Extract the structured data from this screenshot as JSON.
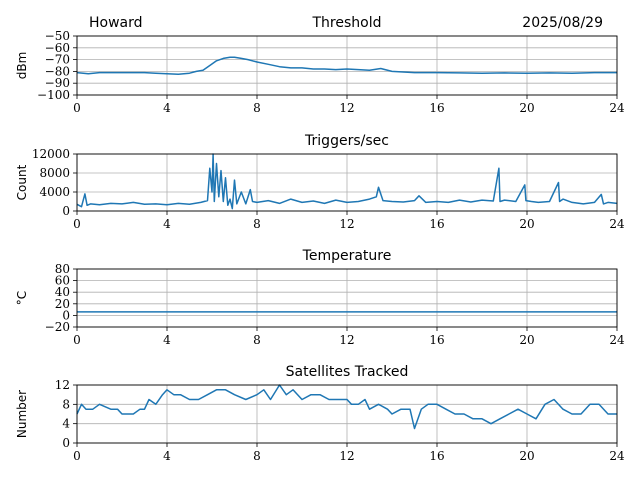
{
  "header": {
    "station": "Howard",
    "date": "2025/08/29"
  },
  "colors": {
    "series": "#1f77b4",
    "grid": "#b0b0b0"
  },
  "chart_data": [
    {
      "type": "line",
      "title": "Threshold",
      "ylabel": "dBm",
      "xlim": [
        0,
        24
      ],
      "ylim": [
        -100,
        -50
      ],
      "xticks": [
        0,
        4,
        8,
        12,
        16,
        20,
        24
      ],
      "xtick_labels": [
        "0",
        "4",
        "8",
        "12",
        "16",
        "20",
        "24"
      ],
      "yticks": [
        -100,
        -90,
        -80,
        -70,
        -60,
        -50
      ],
      "ytick_labels": [
        "−100",
        "−90",
        "−80",
        "−70",
        "−60",
        "−50"
      ],
      "grid": true,
      "series": [
        {
          "x": [
            0,
            0.5,
            1,
            2,
            3,
            3.5,
            4,
            4.5,
            5,
            5.3,
            5.6,
            5.9,
            6.2,
            6.5,
            6.8,
            7,
            7.3,
            7.6,
            8,
            8.5,
            9,
            9.5,
            10,
            10.5,
            11,
            11.5,
            12,
            12.5,
            13,
            13.5,
            14,
            15,
            16,
            17,
            18,
            19,
            20,
            21,
            22,
            23,
            24
          ],
          "y": [
            -81,
            -82,
            -81,
            -81,
            -81,
            -81.5,
            -82,
            -82.5,
            -81.5,
            -80,
            -79,
            -75,
            -71,
            -69,
            -68,
            -68,
            -69,
            -70,
            -72,
            -74,
            -76,
            -77,
            -77,
            -78,
            -78,
            -78.5,
            -78,
            -78.5,
            -79,
            -77.5,
            -80,
            -81,
            -81,
            -81.3,
            -81.5,
            -81.3,
            -81.5,
            -81.3,
            -81.5,
            -81,
            -81
          ]
        }
      ]
    },
    {
      "type": "line",
      "title": "Triggers/sec",
      "ylabel": "Count",
      "xlim": [
        0,
        24
      ],
      "ylim": [
        0,
        12000
      ],
      "xticks": [
        0,
        4,
        8,
        12,
        16,
        20,
        24
      ],
      "xtick_labels": [
        "0",
        "4",
        "8",
        "12",
        "16",
        "20",
        "24"
      ],
      "yticks": [
        0,
        4000,
        8000,
        12000
      ],
      "ytick_labels": [
        "0",
        "4000",
        "8000",
        "12000"
      ],
      "grid": true,
      "series": [
        {
          "x": [
            0,
            0.2,
            0.35,
            0.45,
            0.6,
            1,
            1.5,
            2,
            2.5,
            3,
            3.5,
            4,
            4.5,
            5,
            5.5,
            5.8,
            5.9,
            6.0,
            6.05,
            6.1,
            6.2,
            6.3,
            6.4,
            6.5,
            6.6,
            6.7,
            6.8,
            6.9,
            7.0,
            7.1,
            7.3,
            7.5,
            7.7,
            7.8,
            8,
            8.5,
            9,
            9.5,
            10,
            10.5,
            11,
            11.5,
            12,
            12.5,
            13,
            13.3,
            13.4,
            13.6,
            14,
            14.5,
            15,
            15.2,
            15.5,
            16,
            16.5,
            17,
            17.5,
            18,
            18.5,
            18.75,
            18.8,
            19,
            19.5,
            19.9,
            19.95,
            20.2,
            20.5,
            21,
            21.4,
            21.45,
            21.6,
            22,
            22.5,
            23,
            23.3,
            23.4,
            23.6,
            24
          ],
          "y": [
            1400,
            900,
            3600,
            1200,
            1500,
            1300,
            1600,
            1500,
            1800,
            1400,
            1500,
            1300,
            1600,
            1400,
            1800,
            2200,
            9000,
            4000,
            12000,
            2000,
            10000,
            3000,
            8500,
            2000,
            7000,
            1200,
            2500,
            500,
            6500,
            1500,
            4000,
            1500,
            4500,
            2000,
            1800,
            2200,
            1600,
            2500,
            1800,
            2100,
            1600,
            2300,
            1800,
            2000,
            2500,
            3000,
            5000,
            2200,
            2000,
            1900,
            2200,
            3200,
            1800,
            2000,
            1800,
            2300,
            1900,
            2300,
            2100,
            9000,
            2000,
            2300,
            2000,
            5500,
            2200,
            2000,
            1800,
            2000,
            6000,
            2000,
            2500,
            1800,
            1500,
            1800,
            3500,
            1500,
            1800,
            1600
          ]
        }
      ]
    },
    {
      "type": "line",
      "title": "Temperature",
      "ylabel": "°C",
      "xlim": [
        0,
        24
      ],
      "ylim": [
        -20,
        80
      ],
      "xticks": [
        0,
        4,
        8,
        12,
        16,
        20,
        24
      ],
      "xtick_labels": [
        "0",
        "4",
        "8",
        "12",
        "16",
        "20",
        "24"
      ],
      "yticks": [
        -20,
        0,
        20,
        40,
        60,
        80
      ],
      "ytick_labels": [
        "−20",
        "0",
        "20",
        "40",
        "60",
        "80"
      ],
      "grid": true,
      "series": [
        {
          "x": [
            0,
            24
          ],
          "y": [
            6,
            6
          ]
        }
      ]
    },
    {
      "type": "line",
      "title": "Satellites Tracked",
      "ylabel": "Number",
      "xlim": [
        0,
        24
      ],
      "ylim": [
        0,
        12
      ],
      "xticks": [
        0,
        4,
        8,
        12,
        16,
        20,
        24
      ],
      "xtick_labels": [
        "0",
        "4",
        "8",
        "12",
        "16",
        "20",
        "24"
      ],
      "yticks": [
        0,
        4,
        8,
        12
      ],
      "ytick_labels": [
        "0",
        "4",
        "8",
        "12"
      ],
      "grid": true,
      "series": [
        {
          "x": [
            0,
            0.2,
            0.4,
            0.7,
            1,
            1.5,
            1.8,
            2,
            2.5,
            2.8,
            3,
            3.2,
            3.5,
            3.8,
            4,
            4.3,
            4.6,
            5,
            5.4,
            5.8,
            6.2,
            6.6,
            7,
            7.5,
            8,
            8.3,
            8.6,
            9,
            9.3,
            9.6,
            10,
            10.4,
            10.8,
            11.2,
            11.6,
            12,
            12.2,
            12.5,
            12.8,
            13,
            13.4,
            13.8,
            14,
            14.4,
            14.8,
            15,
            15.3,
            15.6,
            16,
            16.4,
            16.8,
            17.2,
            17.6,
            18,
            18.4,
            18.8,
            19.2,
            19.6,
            20,
            20.4,
            20.8,
            21.2,
            21.6,
            22,
            22.4,
            22.8,
            23.2,
            23.6,
            24
          ],
          "y": [
            6,
            8,
            7,
            7,
            8,
            7,
            7,
            6,
            6,
            7,
            7,
            9,
            8,
            10,
            11,
            10,
            10,
            9,
            9,
            10,
            11,
            11,
            10,
            9,
            10,
            11,
            9,
            12,
            10,
            11,
            9,
            10,
            10,
            9,
            9,
            9,
            8,
            8,
            9,
            7,
            8,
            7,
            6,
            7,
            7,
            3,
            7,
            8,
            8,
            7,
            6,
            6,
            5,
            5,
            4,
            5,
            6,
            7,
            6,
            5,
            8,
            9,
            7,
            6,
            6,
            8,
            8,
            6,
            6
          ]
        }
      ]
    }
  ]
}
